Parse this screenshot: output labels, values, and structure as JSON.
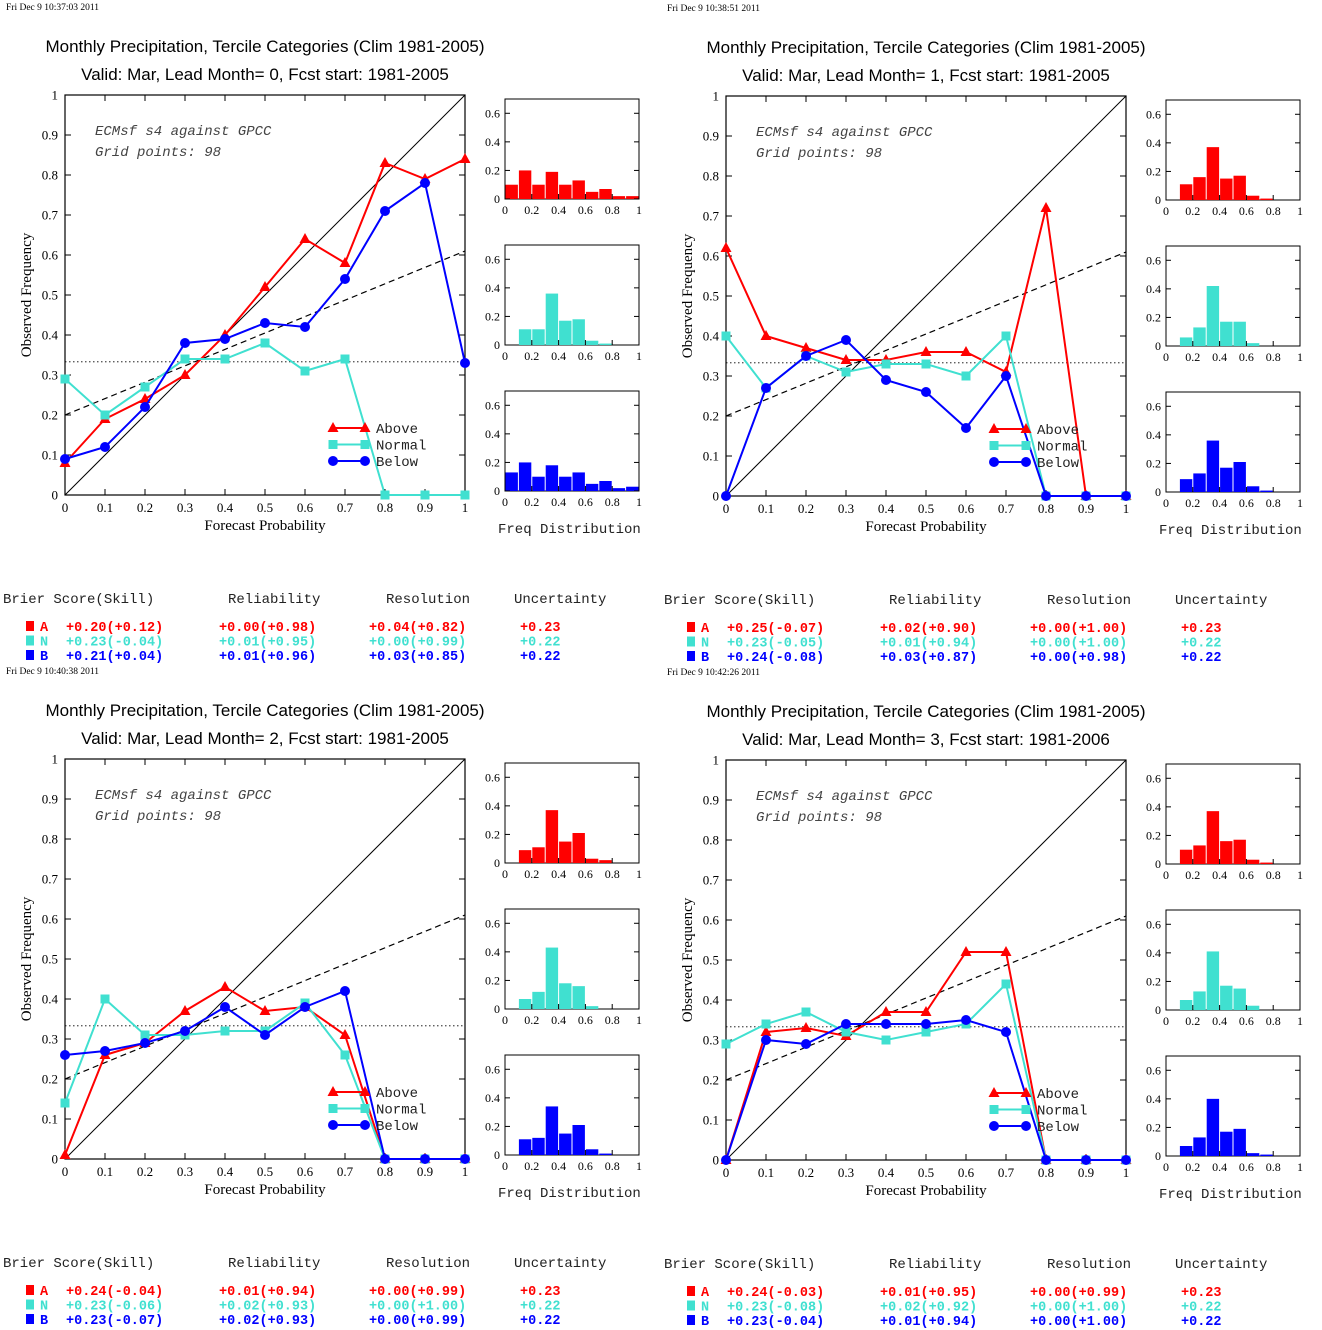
{
  "colors": {
    "above": "#ff0000",
    "normal": "#40e0d0",
    "below": "#0000ff",
    "axis": "#000000"
  },
  "common": {
    "xlabel": "Forecast Probability",
    "ylabel": "Observed Frequency",
    "freq_label": "Freq Distribution",
    "legend": [
      "Above",
      "Normal",
      "Below"
    ],
    "info_line1": "ECMsf s4 against GPCC",
    "info_line2": "Grid points:    98",
    "score_headers": [
      "Brier Score(Skill)",
      "Reliability",
      "Resolution",
      "Uncertainty"
    ],
    "x_ticks": [
      "0",
      "0.1",
      "0.2",
      "0.3",
      "0.4",
      "0.5",
      "0.6",
      "0.7",
      "0.8",
      "0.9",
      "1"
    ],
    "y_ticks": [
      "0",
      "0.1",
      "0.2",
      "0.3",
      "0.4",
      "0.5",
      "0.6",
      "0.7",
      "0.8",
      "0.9",
      "1"
    ],
    "hist_x_ticks": [
      "0",
      "0.2",
      "0.4",
      "0.6",
      "0.8",
      "1"
    ],
    "hist_y_ticks": [
      "0",
      "0.2",
      "0.4",
      "0.6"
    ]
  },
  "chart_data": [
    {
      "type": "line",
      "timestamp": "Fri Dec  9 10:37:03 2011",
      "title": "Monthly Precipitation, Tercile Categories (Clim 1981-2005)",
      "subtitle": "Valid: Mar, Lead Month= 0, Fcst start: 1981-2005",
      "xlim": [
        0,
        1
      ],
      "ylim": [
        0,
        1
      ],
      "x": [
        0,
        0.1,
        0.2,
        0.3,
        0.4,
        0.5,
        0.6,
        0.7,
        0.8,
        0.9,
        1.0
      ],
      "dashed_line": [
        [
          0,
          0.2
        ],
        [
          1,
          0.61
        ]
      ],
      "climatology": 0.333,
      "series": [
        {
          "name": "Above",
          "values": [
            0.08,
            0.19,
            0.24,
            0.3,
            0.4,
            0.52,
            0.64,
            0.58,
            0.83,
            0.79,
            0.84
          ]
        },
        {
          "name": "Normal",
          "values": [
            0.29,
            0.2,
            0.27,
            0.34,
            0.34,
            0.38,
            0.31,
            0.34,
            0.0,
            0.0,
            0.0
          ]
        },
        {
          "name": "Below",
          "values": [
            0.09,
            0.12,
            0.22,
            0.38,
            0.39,
            0.43,
            0.42,
            0.54,
            0.71,
            0.78,
            0.33
          ]
        }
      ],
      "histograms": {
        "A": [
          0.1,
          0.2,
          0.1,
          0.19,
          0.1,
          0.13,
          0.05,
          0.07,
          0.02,
          0.02
        ],
        "N": [
          0.0,
          0.11,
          0.11,
          0.36,
          0.17,
          0.18,
          0.03,
          0.01,
          0.0,
          0.0
        ],
        "B": [
          0.13,
          0.2,
          0.1,
          0.18,
          0.1,
          0.13,
          0.05,
          0.07,
          0.02,
          0.03
        ]
      },
      "scores": [
        {
          "cat": "A",
          "bs": "+0.20(+0.12)",
          "rel": "+0.00(+0.98)",
          "res": "+0.04(+0.82)",
          "unc": "+0.23"
        },
        {
          "cat": "N",
          "bs": "+0.23(-0.04)",
          "rel": "+0.01(+0.95)",
          "res": "+0.00(+0.99)",
          "unc": "+0.22"
        },
        {
          "cat": "B",
          "bs": "+0.21(+0.04)",
          "rel": "+0.01(+0.96)",
          "res": "+0.03(+0.85)",
          "unc": "+0.22"
        }
      ]
    },
    {
      "type": "line",
      "timestamp": "Fri Dec  9 10:38:51 2011",
      "title": "Monthly Precipitation, Tercile Categories (Clim 1981-2005)",
      "subtitle": "Valid: Mar, Lead Month= 1, Fcst start: 1981-2005",
      "xlim": [
        0,
        1
      ],
      "ylim": [
        0,
        1
      ],
      "x": [
        0,
        0.1,
        0.2,
        0.3,
        0.4,
        0.5,
        0.6,
        0.7,
        0.8,
        0.9,
        1.0
      ],
      "dashed_line": [
        [
          0,
          0.2
        ],
        [
          1,
          0.61
        ]
      ],
      "climatology": 0.333,
      "series": [
        {
          "name": "Above",
          "values": [
            0.62,
            0.4,
            0.37,
            0.34,
            0.34,
            0.36,
            0.36,
            0.31,
            0.72,
            0.0,
            0.0
          ]
        },
        {
          "name": "Normal",
          "values": [
            0.4,
            0.27,
            0.35,
            0.31,
            0.33,
            0.33,
            0.3,
            0.4,
            0.0,
            0.0,
            0.0
          ]
        },
        {
          "name": "Below",
          "values": [
            0.0,
            0.27,
            0.35,
            0.39,
            0.29,
            0.26,
            0.17,
            0.3,
            0.0,
            0.0,
            0.0
          ]
        }
      ],
      "histograms": {
        "A": [
          0.0,
          0.11,
          0.16,
          0.37,
          0.15,
          0.17,
          0.03,
          0.01,
          0.0,
          0.0
        ],
        "N": [
          0.0,
          0.06,
          0.13,
          0.42,
          0.17,
          0.17,
          0.02,
          0.0,
          0.0,
          0.0
        ],
        "B": [
          0.0,
          0.09,
          0.13,
          0.36,
          0.17,
          0.21,
          0.04,
          0.01,
          0.0,
          0.0
        ]
      },
      "scores": [
        {
          "cat": "A",
          "bs": "+0.25(-0.07)",
          "rel": "+0.02(+0.90)",
          "res": "+0.00(+1.00)",
          "unc": "+0.23"
        },
        {
          "cat": "N",
          "bs": "+0.23(-0.05)",
          "rel": "+0.01(+0.94)",
          "res": "+0.00(+1.00)",
          "unc": "+0.22"
        },
        {
          "cat": "B",
          "bs": "+0.24(-0.08)",
          "rel": "+0.03(+0.87)",
          "res": "+0.00(+0.98)",
          "unc": "+0.22"
        }
      ]
    },
    {
      "type": "line",
      "timestamp": "Fri Dec  9 10:40:38 2011",
      "title": "Monthly Precipitation, Tercile Categories (Clim 1981-2005)",
      "subtitle": "Valid: Mar, Lead Month= 2, Fcst start: 1981-2005",
      "xlim": [
        0,
        1
      ],
      "ylim": [
        0,
        1
      ],
      "x": [
        0,
        0.1,
        0.2,
        0.3,
        0.4,
        0.5,
        0.6,
        0.7,
        0.8,
        0.9,
        1.0
      ],
      "dashed_line": [
        [
          0,
          0.2
        ],
        [
          1,
          0.61
        ]
      ],
      "climatology": 0.333,
      "series": [
        {
          "name": "Above",
          "values": [
            0.01,
            0.26,
            0.29,
            0.37,
            0.43,
            0.37,
            0.38,
            0.31,
            0.0,
            0.0,
            0.0
          ]
        },
        {
          "name": "Normal",
          "values": [
            0.14,
            0.4,
            0.31,
            0.31,
            0.32,
            0.32,
            0.39,
            0.26,
            0.0,
            0.0,
            0.0
          ]
        },
        {
          "name": "Below",
          "values": [
            0.26,
            0.27,
            0.29,
            0.32,
            0.38,
            0.31,
            0.38,
            0.42,
            0.0,
            0.0,
            0.0
          ]
        }
      ],
      "histograms": {
        "A": [
          0.0,
          0.09,
          0.11,
          0.37,
          0.15,
          0.21,
          0.03,
          0.02,
          0.0,
          0.0
        ],
        "N": [
          0.0,
          0.07,
          0.12,
          0.43,
          0.18,
          0.16,
          0.02,
          0.0,
          0.0,
          0.0
        ],
        "B": [
          0.0,
          0.11,
          0.12,
          0.34,
          0.15,
          0.21,
          0.04,
          0.01,
          0.0,
          0.0
        ]
      },
      "scores": [
        {
          "cat": "A",
          "bs": "+0.24(-0.04)",
          "rel": "+0.01(+0.94)",
          "res": "+0.00(+0.99)",
          "unc": "+0.23"
        },
        {
          "cat": "N",
          "bs": "+0.23(-0.06)",
          "rel": "+0.02(+0.93)",
          "res": "+0.00(+1.00)",
          "unc": "+0.22"
        },
        {
          "cat": "B",
          "bs": "+0.23(-0.07)",
          "rel": "+0.02(+0.93)",
          "res": "+0.00(+0.99)",
          "unc": "+0.22"
        }
      ]
    },
    {
      "type": "line",
      "timestamp": "Fri Dec  9 10:42:26 2011",
      "title": "Monthly Precipitation, Tercile Categories (Clim 1981-2005)",
      "subtitle": "Valid: Mar, Lead Month= 3, Fcst start: 1981-2006",
      "xlim": [
        0,
        1
      ],
      "ylim": [
        0,
        1
      ],
      "x": [
        0,
        0.1,
        0.2,
        0.3,
        0.4,
        0.5,
        0.6,
        0.7,
        0.8,
        0.9,
        1.0
      ],
      "dashed_line": [
        [
          0,
          0.2
        ],
        [
          1,
          0.61
        ]
      ],
      "climatology": 0.333,
      "series": [
        {
          "name": "Above",
          "values": [
            0.0,
            0.32,
            0.33,
            0.31,
            0.37,
            0.37,
            0.52,
            0.52,
            0.0,
            0.0,
            0.0
          ]
        },
        {
          "name": "Normal",
          "values": [
            0.29,
            0.34,
            0.37,
            0.32,
            0.3,
            0.32,
            0.34,
            0.44,
            0.0,
            0.0,
            0.0
          ]
        },
        {
          "name": "Below",
          "values": [
            0.0,
            0.3,
            0.29,
            0.34,
            0.34,
            0.34,
            0.35,
            0.32,
            0.0,
            0.0,
            0.0
          ]
        }
      ],
      "histograms": {
        "A": [
          0.0,
          0.1,
          0.13,
          0.37,
          0.16,
          0.17,
          0.03,
          0.01,
          0.0,
          0.0
        ],
        "N": [
          0.0,
          0.07,
          0.13,
          0.41,
          0.17,
          0.15,
          0.03,
          0.0,
          0.0,
          0.0
        ],
        "B": [
          0.0,
          0.07,
          0.13,
          0.4,
          0.17,
          0.19,
          0.02,
          0.01,
          0.0,
          0.0
        ]
      },
      "scores": [
        {
          "cat": "A",
          "bs": "+0.24(-0.03)",
          "rel": "+0.01(+0.95)",
          "res": "+0.00(+0.99)",
          "unc": "+0.23"
        },
        {
          "cat": "N",
          "bs": "+0.23(-0.08)",
          "rel": "+0.02(+0.92)",
          "res": "+0.00(+1.00)",
          "unc": "+0.22"
        },
        {
          "cat": "B",
          "bs": "+0.23(-0.04)",
          "rel": "+0.01(+0.94)",
          "res": "+0.00(+1.00)",
          "unc": "+0.22"
        }
      ]
    }
  ]
}
